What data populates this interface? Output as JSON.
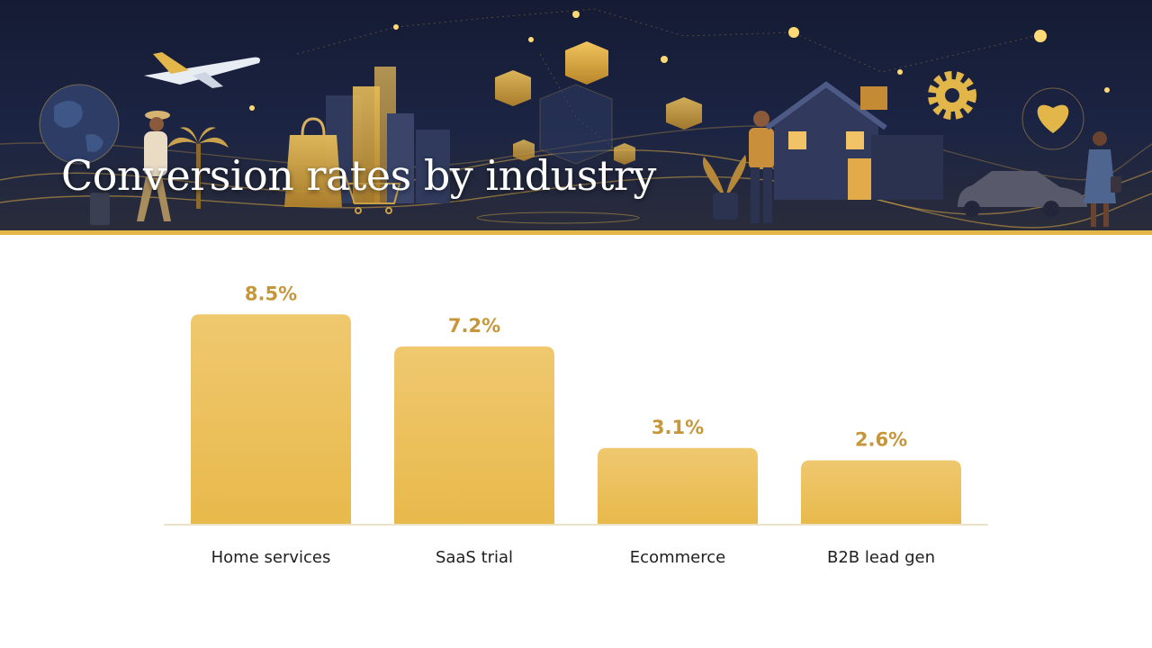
{
  "page": {
    "title": "Conversion rates by industry"
  },
  "colors": {
    "bar": "#ecc25a",
    "bar_light": "#efc86f",
    "value_label": "#c6973a",
    "baseline": "#ece3c7",
    "hero_bg": "#1b2443",
    "accent": "#e3b64a"
  },
  "hero_icons": [
    "globe-icon",
    "airplane-icon",
    "traveler-icon",
    "palm-tree-icon",
    "shopping-bag-icon",
    "shopping-cart-icon",
    "city-buildings-icon",
    "cube-network-icon",
    "person-icon",
    "house-icon",
    "gear-icon",
    "heart-icon",
    "car-icon",
    "woman-icon"
  ],
  "chart_data": {
    "type": "bar",
    "categories": [
      "Home services",
      "SaaS trial",
      "Ecommerce",
      "B2B lead gen"
    ],
    "values": [
      8.5,
      7.2,
      3.1,
      2.6
    ],
    "value_labels": [
      "8.5%",
      "7.2%",
      "3.1%",
      "2.6%"
    ],
    "title": "Conversion rates by industry",
    "xlabel": "",
    "ylabel": "",
    "ylim": [
      0,
      10
    ],
    "grid": false,
    "legend": "none"
  }
}
